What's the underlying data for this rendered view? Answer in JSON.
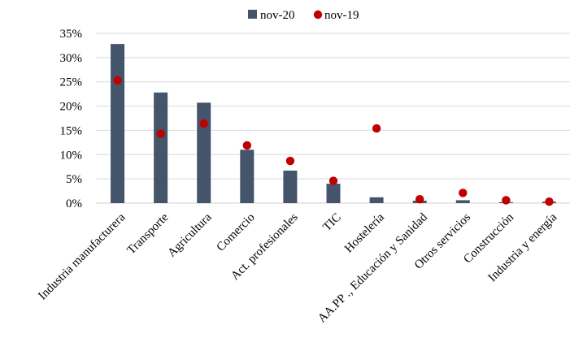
{
  "chart_data": {
    "type": "bar",
    "categories": [
      "Industria manufacturera",
      "Transporte",
      "Agricultura",
      "Comercio",
      "Act. profesionales",
      "TIC",
      "Hostelería",
      "AA.PP ., Educación y Sanidad",
      "Otros servicios",
      "Construcción",
      "Industria y energía"
    ],
    "series": [
      {
        "name": "nov-20",
        "type": "bar",
        "color": "#44546A",
        "values": [
          32.8,
          22.8,
          20.7,
          11.0,
          6.7,
          4.0,
          1.2,
          0.5,
          0.6,
          0.2,
          0.3
        ]
      },
      {
        "name": "nov-19",
        "type": "scatter",
        "color": "#C00000",
        "values": [
          25.3,
          14.3,
          16.4,
          11.9,
          8.7,
          4.6,
          15.4,
          0.8,
          2.1,
          0.6,
          0.3
        ]
      }
    ],
    "yticks": [
      "0%",
      "5%",
      "10%",
      "15%",
      "20%",
      "25%",
      "30%",
      "35%"
    ],
    "ylim": [
      0,
      35
    ],
    "grid": true,
    "legend_position": "top-center"
  }
}
